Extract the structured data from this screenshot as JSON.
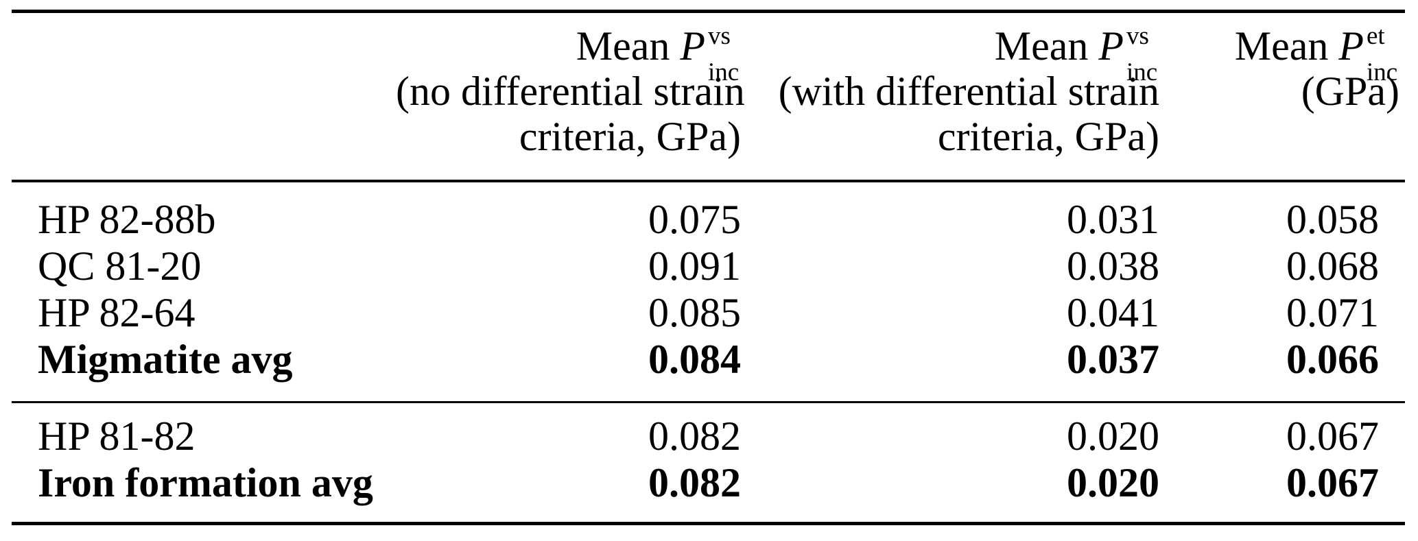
{
  "style": {
    "background": "#ffffff",
    "text_color": "#000000"
  },
  "table": {
    "header": {
      "col1": {
        "mean": "Mean",
        "symbol": "P",
        "sup": "vs",
        "sub": "inc",
        "line2": "(no differential strain",
        "line3": "criteria, GPa)"
      },
      "col2": {
        "mean": "Mean",
        "symbol": "P",
        "sup": "vs",
        "sub": "inc",
        "line2": "(with differential strain",
        "line3": "criteria, GPa)"
      },
      "col3": {
        "mean": "Mean",
        "symbol": "P",
        "sup": "et",
        "sub": "inc",
        "line2": "(GPa)"
      }
    },
    "sections": [
      {
        "rows": [
          {
            "label": "HP 82-88b",
            "v1": "0.075",
            "v2": "0.031",
            "v3": "0.058"
          },
          {
            "label": "QC 81-20",
            "v1": "0.091",
            "v2": "0.038",
            "v3": "0.068"
          },
          {
            "label": "HP 82-64",
            "v1": "0.085",
            "v2": "0.041",
            "v3": "0.071"
          },
          {
            "label": "Migmatite avg",
            "v1": "0.084",
            "v2": "0.037",
            "v3": "0.066"
          }
        ]
      },
      {
        "rows": [
          {
            "label": "HP 81-82",
            "v1": "0.082",
            "v2": "0.020",
            "v3": "0.067"
          },
          {
            "label": "Iron formation avg",
            "v1": "0.082",
            "v2": "0.020",
            "v3": "0.067"
          }
        ]
      }
    ]
  }
}
